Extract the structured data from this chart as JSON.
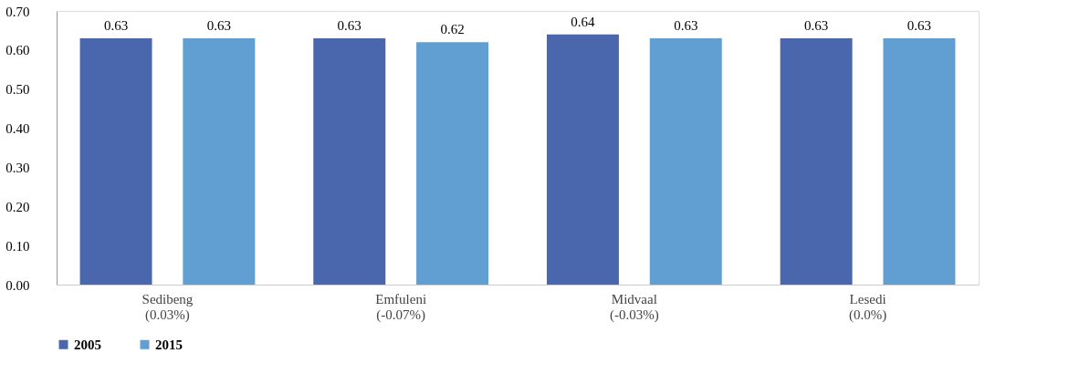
{
  "chart_data": {
    "type": "bar",
    "categories": [
      "Sedibeng (0.03%)",
      "Emfuleni (-0.07%)",
      "Midvaal (-0.03%)",
      "Lesedi (0.0%)"
    ],
    "series": [
      {
        "name": "2005",
        "color": "#4a66ad",
        "values": [
          0.63,
          0.63,
          0.64,
          0.63
        ]
      },
      {
        "name": "2015",
        "color": "#619ed2",
        "values": [
          0.63,
          0.62,
          0.63,
          0.63
        ]
      }
    ],
    "ylim": [
      0,
      0.7
    ],
    "yticks": [
      {
        "value": 0,
        "label": "0.00"
      },
      {
        "value": 0.1,
        "label": "0.10"
      },
      {
        "value": 0.2,
        "label": "0.20"
      },
      {
        "value": 0.3,
        "label": "0.30"
      },
      {
        "value": 0.4,
        "label": "0.40"
      },
      {
        "value": 0.5,
        "label": "0.50"
      },
      {
        "value": 0.6,
        "label": "0.60"
      },
      {
        "value": 0.7,
        "label": "0.70"
      }
    ],
    "grid": false,
    "legend": "bottom",
    "data_labels": true
  }
}
